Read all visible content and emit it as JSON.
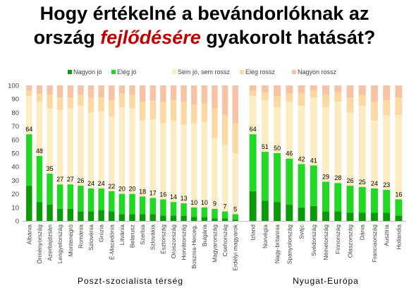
{
  "title": {
    "line1": "Hogy értékelné a bevándorlóknak az",
    "line2_pre": "ország ",
    "line2_highlight": "fejlődésére",
    "line2_post": " gyakorolt hatását?"
  },
  "colors": {
    "nagyon_jo": "#0a9a0a",
    "eleg_jo": "#22d822",
    "semleges": "#fcecc4",
    "eleg_rossz": "#fbd9a2",
    "nagyon_rossz": "#f6c3a6",
    "highlight": "#c00000"
  },
  "chart_data": {
    "type": "bar",
    "stacked": true,
    "ylim": [
      0,
      100
    ],
    "yticks": [
      0,
      10,
      20,
      30,
      40,
      50,
      60,
      70,
      80,
      90,
      100
    ],
    "grid": false,
    "legend_position": "top-left",
    "legend": [
      "Nagyon jó",
      "Elég jó",
      "Sem jó, sem rossz",
      "Elég rossz",
      "Nagyon rossz"
    ],
    "groups": [
      {
        "name": "Poszt-szocialista térség",
        "categories": [
          "Albánia",
          "Örményország",
          "Azerbajdzsán",
          "Lengyelország",
          "Montenegró",
          "Románia",
          "Szlovénia",
          "Grúzia",
          "É-Macedónia",
          "Litvánia",
          "Belarusz",
          "Szerbia",
          "Szlovákia",
          "Észtország",
          "Oroszország",
          "Horvátország",
          "Bosznia-Herceg.",
          "Bulgária",
          "Magyarország",
          "Csehország",
          "Erdélyi magyarok"
        ],
        "positive_totals": [
          64,
          48,
          35,
          27,
          27,
          26,
          24,
          24,
          22,
          20,
          20,
          18,
          17,
          16,
          14,
          13,
          10,
          10,
          9,
          7,
          5
        ],
        "nagyon_jo": [
          26,
          14,
          12,
          9,
          9,
          7,
          7,
          8,
          7,
          5,
          5,
          5,
          5,
          4,
          4,
          4,
          3,
          3,
          2,
          2,
          1
        ],
        "sem_jo_sem_rossz": [
          28,
          40,
          48,
          55,
          56,
          59,
          56,
          57,
          55,
          64,
          63,
          56,
          58,
          56,
          60,
          58,
          62,
          63,
          52,
          49,
          45
        ],
        "eleg_rossz": [
          4,
          6,
          10,
          9,
          8,
          8,
          11,
          10,
          12,
          10,
          10,
          14,
          14,
          16,
          15,
          17,
          14,
          14,
          22,
          22,
          22
        ],
        "nagyon_rossz": [
          4,
          6,
          7,
          9,
          9,
          7,
          9,
          9,
          11,
          6,
          7,
          12,
          11,
          12,
          11,
          12,
          14,
          13,
          17,
          22,
          28
        ]
      },
      {
        "name": "Nyugat-Európa",
        "categories": [
          "Izland",
          "Norvégia",
          "Nagy-britannia",
          "Spanyolország",
          "Svájc",
          "Svédország",
          "Németország",
          "Finnország",
          "Olaszország",
          "Dánia",
          "Franciaország",
          "Ausztria",
          "Hollandia"
        ],
        "positive_totals": [
          64,
          51,
          50,
          46,
          42,
          41,
          29,
          28,
          26,
          25,
          24,
          23,
          16
        ],
        "nagyon_jo": [
          22,
          15,
          14,
          12,
          10,
          11,
          7,
          7,
          6,
          6,
          6,
          6,
          4
        ],
        "sem_jo_sem_rossz": [
          28,
          38,
          34,
          42,
          43,
          50,
          55,
          60,
          54,
          60,
          50,
          55,
          62
        ],
        "eleg_rossz": [
          4,
          6,
          8,
          6,
          9,
          5,
          9,
          7,
          11,
          8,
          14,
          11,
          13
        ],
        "nagyon_rossz": [
          4,
          5,
          8,
          6,
          6,
          4,
          7,
          5,
          9,
          7,
          12,
          11,
          9
        ]
      }
    ]
  }
}
